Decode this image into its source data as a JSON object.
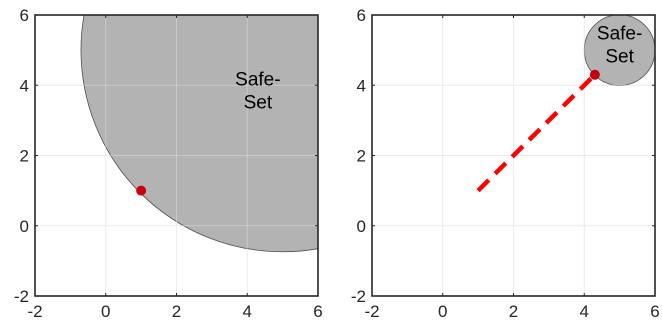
{
  "chart_data": [
    {
      "type": "scatter",
      "xlim": [
        -2,
        6
      ],
      "ylim": [
        -2,
        6
      ],
      "xticks": [
        -2,
        0,
        2,
        4,
        6
      ],
      "yticks": [
        -2,
        0,
        2,
        4,
        6
      ],
      "grid": true,
      "safe_set": {
        "center": [
          5,
          5
        ],
        "radius": 5.7
      },
      "annotation": {
        "lines": [
          "Safe-",
          "Set"
        ],
        "x": 4.3,
        "y": 4.0
      },
      "point": {
        "x": 1,
        "y": 1
      },
      "path": null
    },
    {
      "type": "line",
      "xlim": [
        -2,
        6
      ],
      "ylim": [
        -2,
        6
      ],
      "xticks": [
        -2,
        0,
        2,
        4,
        6
      ],
      "yticks": [
        -2,
        0,
        2,
        4,
        6
      ],
      "grid": true,
      "safe_set": {
        "center": [
          5,
          5
        ],
        "radius": 1
      },
      "annotation": {
        "lines": [
          "Safe-",
          "Set"
        ],
        "x": 5.0,
        "y": 5.3
      },
      "point": {
        "x": 4.3,
        "y": 4.3
      },
      "path": {
        "x": [
          1,
          4.3
        ],
        "y": [
          1,
          4.3
        ]
      }
    }
  ],
  "colors": {
    "safe_fill": "#b3b3b3",
    "safe_edge": "#4d4d4d",
    "point": "#c8000a",
    "path": "#ff0000",
    "grid": "#dcdcdc",
    "axis": "#262626"
  }
}
